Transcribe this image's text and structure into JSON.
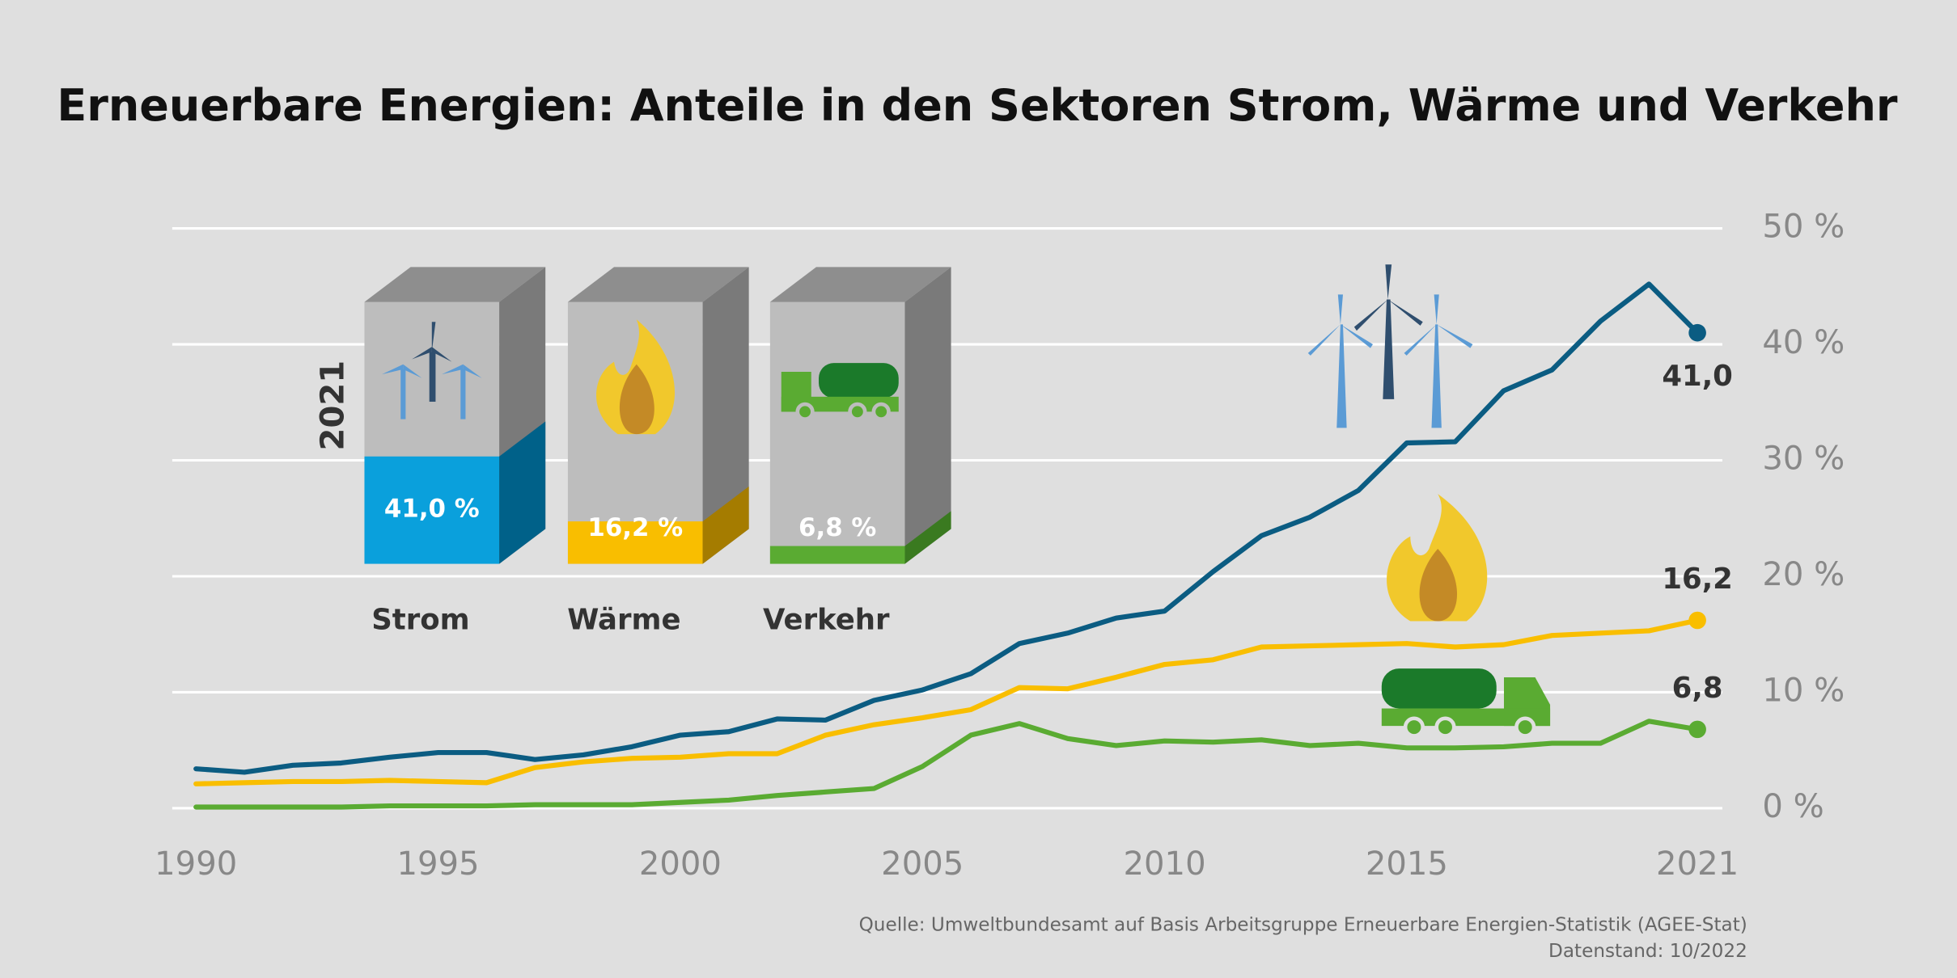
{
  "chart_data": {
    "type": "line",
    "title": "Erneuerbare Energien: Anteile in den Sektoren Strom, Wärme und Verkehr",
    "x": [
      1990,
      1991,
      1992,
      1993,
      1994,
      1995,
      1996,
      1997,
      1998,
      1999,
      2000,
      2001,
      2002,
      2003,
      2004,
      2005,
      2006,
      2007,
      2008,
      2009,
      2010,
      2011,
      2012,
      2013,
      2014,
      2015,
      2016,
      2017,
      2018,
      2019,
      2020,
      2021
    ],
    "series": [
      {
        "name": "Strom",
        "color": "#0b5c82",
        "values": [
          3.4,
          3.1,
          3.7,
          3.9,
          4.4,
          4.8,
          4.8,
          4.2,
          4.6,
          5.3,
          6.3,
          6.6,
          7.7,
          7.6,
          9.3,
          10.2,
          11.6,
          14.2,
          15.1,
          16.4,
          17.0,
          20.4,
          23.5,
          25.1,
          27.4,
          31.5,
          31.6,
          36.0,
          37.8,
          42.0,
          45.2,
          41.0
        ],
        "value_labels": [
          null,
          null,
          null,
          null,
          null,
          null,
          null,
          null,
          null,
          null,
          null,
          null,
          null,
          null,
          null,
          null,
          null,
          null,
          null,
          null,
          null,
          null,
          null,
          null,
          null,
          null,
          null,
          null,
          null,
          null,
          null,
          "41,0"
        ]
      },
      {
        "name": "Wärme",
        "color": "#f9be00",
        "values": [
          2.1,
          2.2,
          2.3,
          2.3,
          2.4,
          2.3,
          2.2,
          3.5,
          4.0,
          4.3,
          4.4,
          4.7,
          4.7,
          6.3,
          7.2,
          7.8,
          8.5,
          10.4,
          10.3,
          11.3,
          12.4,
          12.8,
          13.9,
          14.0,
          14.1,
          14.2,
          13.9,
          14.1,
          14.9,
          15.1,
          15.3,
          16.2
        ],
        "value_labels": [
          null,
          null,
          null,
          null,
          null,
          null,
          null,
          null,
          null,
          null,
          null,
          null,
          null,
          null,
          null,
          null,
          null,
          null,
          null,
          null,
          null,
          null,
          null,
          null,
          null,
          null,
          null,
          null,
          null,
          null,
          null,
          "16,2"
        ]
      },
      {
        "name": "Verkehr",
        "color": "#5aab32",
        "values": [
          0.1,
          0.1,
          0.1,
          0.1,
          0.2,
          0.2,
          0.2,
          0.3,
          0.3,
          0.3,
          0.5,
          0.7,
          1.1,
          1.4,
          1.7,
          3.6,
          6.3,
          7.3,
          6.0,
          5.4,
          5.8,
          5.7,
          5.9,
          5.4,
          5.6,
          5.2,
          5.2,
          5.3,
          5.6,
          5.6,
          7.5,
          6.8
        ],
        "value_labels": [
          null,
          null,
          null,
          null,
          null,
          null,
          null,
          null,
          null,
          null,
          null,
          null,
          null,
          null,
          null,
          null,
          null,
          null,
          null,
          null,
          null,
          null,
          null,
          null,
          null,
          null,
          null,
          null,
          null,
          null,
          null,
          "6,8"
        ]
      }
    ],
    "xlim": [
      1990,
      2021
    ],
    "xticks": [
      1990,
      1995,
      2000,
      2005,
      2010,
      2015,
      2021
    ],
    "ylim": [
      0,
      50
    ],
    "yticks": [
      {
        "value": 0,
        "label": "0 %"
      },
      {
        "value": 10,
        "label": "10 %"
      },
      {
        "value": 20,
        "label": "20 %"
      },
      {
        "value": 30,
        "label": "30 %"
      },
      {
        "value": 40,
        "label": "40 %"
      },
      {
        "value": 50,
        "label": "50 %"
      }
    ],
    "grid": true,
    "inset": {
      "year": "2021",
      "categories": [
        "Strom",
        "Wärme",
        "Verkehr"
      ],
      "values": [
        41.0,
        16.2,
        6.8
      ],
      "value_labels": [
        "41,0 %",
        "16,2 %",
        "6,8 %"
      ],
      "ylim": [
        0,
        100
      ],
      "colors": [
        "#0aa0dc",
        "#f9be00",
        "#5aab32"
      ],
      "side_colors": [
        "#006189",
        "#a57c00",
        "#3a7a20"
      ]
    },
    "source": "Quelle: Umweltbundesamt auf Basis Arbeitsgruppe Erneuerbare Energien-Statistik (AGEE-Stat)",
    "date_note": "Datenstand: 10/2022"
  }
}
